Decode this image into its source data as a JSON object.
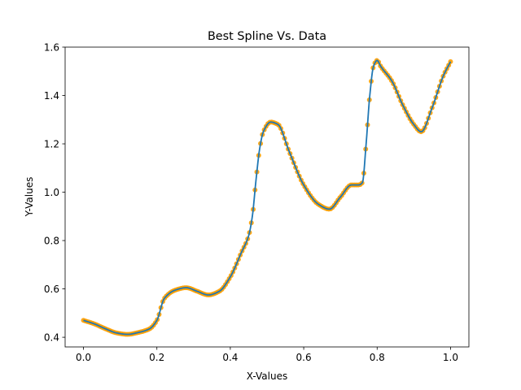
{
  "chart_data": {
    "type": "scatter",
    "title": "Best Spline Vs. Data",
    "xlabel": "X-Values",
    "ylabel": "Y-Values",
    "xlim": [
      -0.05,
      1.05
    ],
    "ylim": [
      0.36,
      1.6
    ],
    "grid": false,
    "xticks": [
      0.0,
      0.2,
      0.4,
      0.6,
      0.8,
      1.0
    ],
    "xtick_labels": [
      "0.0",
      "0.2",
      "0.4",
      "0.6",
      "0.8",
      "1.0"
    ],
    "yticks": [
      0.4,
      0.6,
      0.8,
      1.0,
      1.2,
      1.4,
      1.6
    ],
    "ytick_labels": [
      "0.4",
      "0.6",
      "0.8",
      "1.0",
      "1.2",
      "1.4",
      "1.6"
    ],
    "curve_knots": {
      "x": [
        0.0,
        0.03,
        0.06,
        0.09,
        0.12,
        0.15,
        0.18,
        0.2,
        0.22,
        0.25,
        0.28,
        0.31,
        0.34,
        0.37,
        0.4,
        0.43,
        0.45,
        0.46,
        0.47,
        0.48,
        0.49,
        0.51,
        0.53,
        0.56,
        0.6,
        0.64,
        0.67,
        0.7,
        0.73,
        0.75,
        0.76,
        0.77,
        0.78,
        0.79,
        0.8,
        0.81,
        0.84,
        0.87,
        0.9,
        0.92,
        0.95,
        0.98,
        1.0
      ],
      "y": [
        0.47,
        0.455,
        0.435,
        0.418,
        0.412,
        0.42,
        0.435,
        0.47,
        0.56,
        0.595,
        0.605,
        0.59,
        0.575,
        0.59,
        0.65,
        0.75,
        0.82,
        0.9,
        1.05,
        1.18,
        1.25,
        1.29,
        1.28,
        1.17,
        1.03,
        0.95,
        0.93,
        0.98,
        1.03,
        1.03,
        1.04,
        1.2,
        1.4,
        1.52,
        1.545,
        1.52,
        1.46,
        1.36,
        1.28,
        1.25,
        1.35,
        1.48,
        1.54
      ]
    },
    "series": [
      {
        "type": "line",
        "color": "#1f77b4",
        "linewidth": 1.5
      },
      {
        "type": "scatter",
        "color": "#ff9f00",
        "marker": "circle",
        "n_points": 200
      }
    ]
  }
}
